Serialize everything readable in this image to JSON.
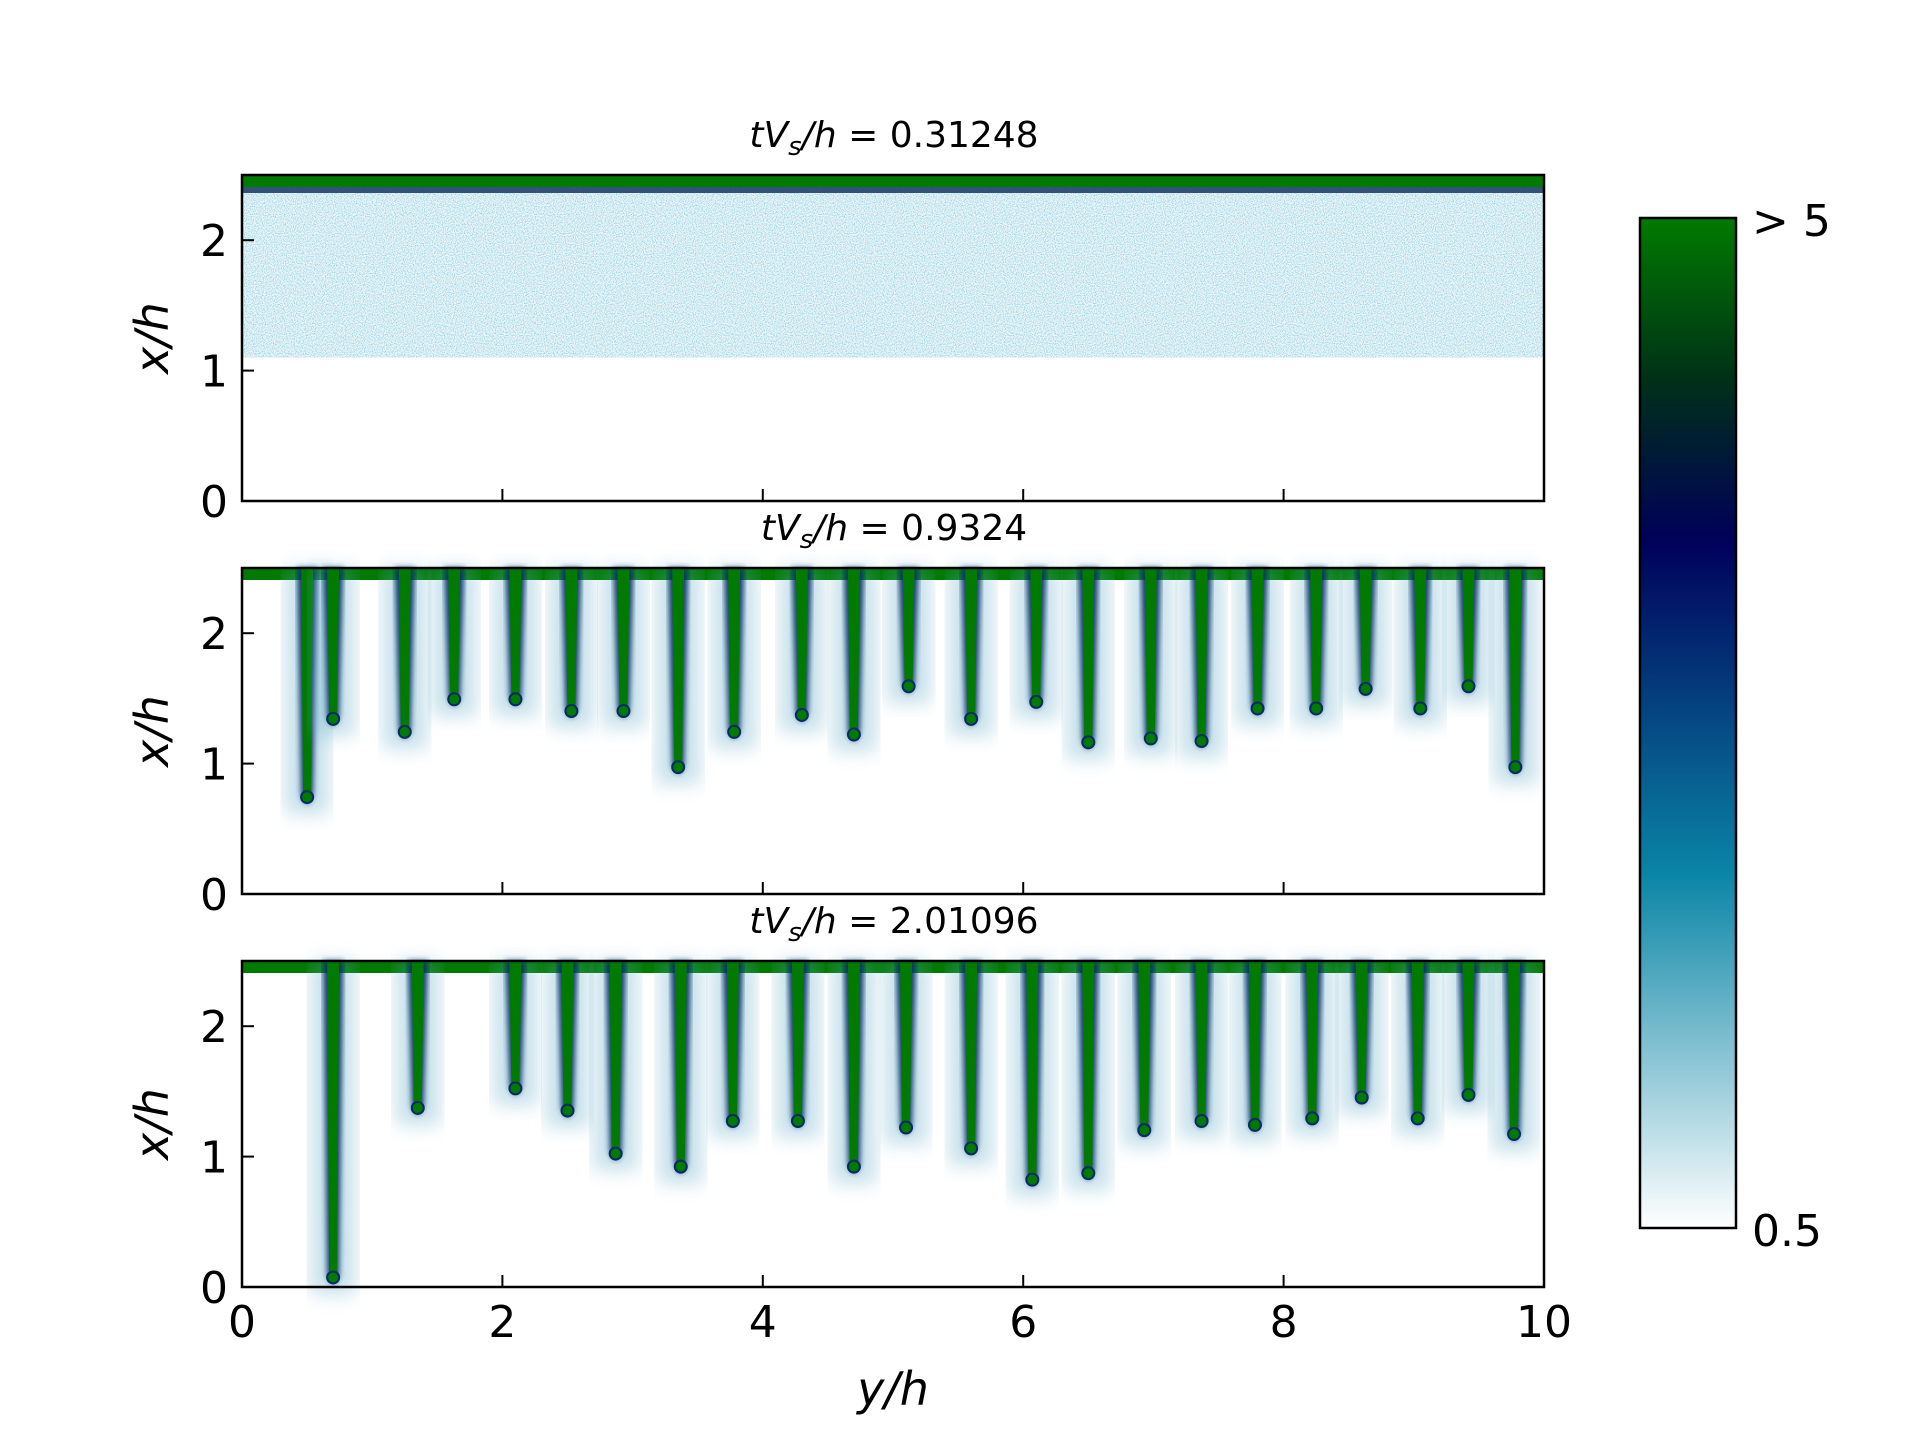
{
  "chart_data": {
    "type": "heatmap",
    "panels": [
      {
        "title_parts": {
          "t": "tV",
          "sub": "s",
          "rest": "/h",
          "eq": " = ",
          "value": "0.31248"
        },
        "ylabel": "x/h",
        "description": "uniform suspended layer from x/h≈1.1 to 2.5 with dense (>5) layer at top",
        "layer_bottom": 1.1,
        "fingers": []
      },
      {
        "title_parts": {
          "t": "tV",
          "sub": "s",
          "rest": "/h",
          "eq": " = ",
          "value": "0.9324"
        },
        "ylabel": "x/h",
        "fingers": [
          {
            "y": 0.5,
            "tip": 0.72
          },
          {
            "y": 0.7,
            "tip": 1.32
          },
          {
            "y": 1.25,
            "tip": 1.22
          },
          {
            "y": 1.63,
            "tip": 1.47
          },
          {
            "y": 2.1,
            "tip": 1.47
          },
          {
            "y": 2.53,
            "tip": 1.38
          },
          {
            "y": 2.93,
            "tip": 1.38
          },
          {
            "y": 3.35,
            "tip": 0.95
          },
          {
            "y": 3.78,
            "tip": 1.22
          },
          {
            "y": 4.3,
            "tip": 1.35
          },
          {
            "y": 4.7,
            "tip": 1.2
          },
          {
            "y": 5.12,
            "tip": 1.57
          },
          {
            "y": 5.6,
            "tip": 1.32
          },
          {
            "y": 6.1,
            "tip": 1.45
          },
          {
            "y": 6.5,
            "tip": 1.14
          },
          {
            "y": 6.98,
            "tip": 1.17
          },
          {
            "y": 7.37,
            "tip": 1.15
          },
          {
            "y": 7.8,
            "tip": 1.4
          },
          {
            "y": 8.25,
            "tip": 1.4
          },
          {
            "y": 8.63,
            "tip": 1.55
          },
          {
            "y": 9.05,
            "tip": 1.4
          },
          {
            "y": 9.42,
            "tip": 1.57
          },
          {
            "y": 9.78,
            "tip": 0.95
          }
        ]
      },
      {
        "title_parts": {
          "t": "tV",
          "sub": "s",
          "rest": "/h",
          "eq": " = ",
          "value": "2.01096"
        },
        "ylabel": "x/h",
        "fingers": [
          {
            "y": 0.7,
            "tip": 0.05
          },
          {
            "y": 1.35,
            "tip": 1.35
          },
          {
            "y": 2.1,
            "tip": 1.5
          },
          {
            "y": 2.5,
            "tip": 1.33
          },
          {
            "y": 2.87,
            "tip": 1.0
          },
          {
            "y": 3.37,
            "tip": 0.9
          },
          {
            "y": 3.77,
            "tip": 1.25
          },
          {
            "y": 4.27,
            "tip": 1.25
          },
          {
            "y": 4.7,
            "tip": 0.9
          },
          {
            "y": 5.1,
            "tip": 1.2
          },
          {
            "y": 5.6,
            "tip": 1.04
          },
          {
            "y": 6.07,
            "tip": 0.8
          },
          {
            "y": 6.5,
            "tip": 0.85
          },
          {
            "y": 6.93,
            "tip": 1.18
          },
          {
            "y": 7.37,
            "tip": 1.25
          },
          {
            "y": 7.78,
            "tip": 1.22
          },
          {
            "y": 8.22,
            "tip": 1.27
          },
          {
            "y": 8.6,
            "tip": 1.43
          },
          {
            "y": 9.03,
            "tip": 1.27
          },
          {
            "y": 9.42,
            "tip": 1.45
          },
          {
            "y": 9.77,
            "tip": 1.15
          }
        ]
      }
    ],
    "xlabel": "y/h",
    "xlim": [
      0,
      10
    ],
    "ylim": [
      0,
      2.5
    ],
    "xticks": [
      0,
      2,
      4,
      6,
      8,
      10
    ],
    "yticks": [
      0,
      1,
      2
    ],
    "colorbar": {
      "min_label": "0.5",
      "max_label": "> 5",
      "colors": [
        "#ffffff",
        "#0080a0",
        "#000055",
        "#007a00"
      ]
    }
  }
}
